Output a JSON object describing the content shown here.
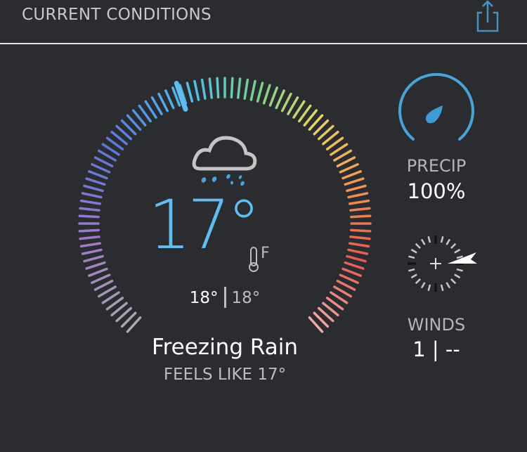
{
  "header": {
    "title": "CURRENT CONDITIONS",
    "share_icon": "share-icon"
  },
  "temperature": {
    "current": "17°",
    "unit": "F",
    "high": "18°",
    "low": "18°",
    "gauge_position_deg": -19
  },
  "condition": {
    "text": "Freezing Rain",
    "feels_like": "FEELS LIKE 17°",
    "icon": "cloud-freezing-rain-icon"
  },
  "precip": {
    "label": "PRECIP",
    "value": "100%",
    "icon": "raindrop-icon",
    "color": "#4aa3d8"
  },
  "winds": {
    "label": "WINDS",
    "value": "1 | --",
    "icon": "compass-icon"
  },
  "colors": {
    "background": "#2b2c30",
    "accent": "#5fbdf0"
  }
}
